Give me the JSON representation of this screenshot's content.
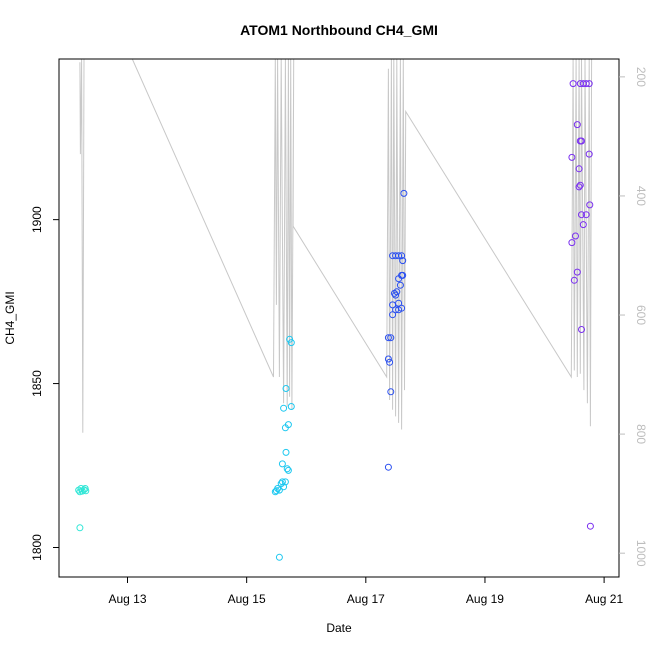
{
  "chart_data": {
    "type": "scatter",
    "title": "ATOM1 Northbound CH4_GMI",
    "xlabel": "Date",
    "ylabel": "CH4_GMI",
    "x_ticks": [
      {
        "day": 13,
        "label": "Aug 13"
      },
      {
        "day": 15,
        "label": "Aug 15"
      },
      {
        "day": 17,
        "label": "Aug 17"
      },
      {
        "day": 19,
        "label": "Aug 19"
      },
      {
        "day": 21,
        "label": "Aug 21"
      }
    ],
    "xlim": [
      11.85,
      21.25
    ],
    "ylim": [
      1791,
      1949
    ],
    "y_ticks": [
      1800,
      1850,
      1900
    ],
    "y2_lim": [
      1040,
      170
    ],
    "y2_ticks": [
      200,
      400,
      600,
      800,
      1000
    ],
    "grid": false,
    "colors": {
      "points_early": "#2ee6d6",
      "points_mid": "#1ec8f0",
      "points_late_mid": "#2a4ff0",
      "points_late": "#7a2ff0",
      "pressure_line": "#c8c8c8"
    },
    "series": [
      {
        "color": "#2ee6d6",
        "points": [
          [
            12.18,
            1817.5
          ],
          [
            12.2,
            1817
          ],
          [
            12.22,
            1818
          ],
          [
            12.24,
            1817.2
          ],
          [
            12.27,
            1817.6
          ],
          [
            12.29,
            1818
          ],
          [
            12.3,
            1817.3
          ],
          [
            12.2,
            1806
          ]
        ]
      },
      {
        "color": "#1ec8f0",
        "points": [
          [
            15.48,
            1817
          ],
          [
            15.5,
            1817.3
          ],
          [
            15.52,
            1818
          ],
          [
            15.55,
            1817.5
          ],
          [
            15.58,
            1819.5
          ],
          [
            15.6,
            1820
          ],
          [
            15.62,
            1818.5
          ],
          [
            15.65,
            1820
          ],
          [
            15.68,
            1824
          ],
          [
            15.7,
            1823.5
          ],
          [
            15.6,
            1825.5
          ],
          [
            15.66,
            1829
          ],
          [
            15.65,
            1836.5
          ],
          [
            15.7,
            1837.5
          ],
          [
            15.62,
            1842.5
          ],
          [
            15.75,
            1843
          ],
          [
            15.66,
            1848.5
          ],
          [
            15.72,
            1863.5
          ],
          [
            15.75,
            1862.5
          ],
          [
            15.55,
            1797
          ]
        ]
      },
      {
        "color": "#2a4ff0",
        "points": [
          [
            17.38,
            1824.5
          ],
          [
            17.42,
            1847.5
          ],
          [
            17.38,
            1857.5
          ],
          [
            17.4,
            1856.5
          ],
          [
            17.38,
            1864
          ],
          [
            17.42,
            1864
          ],
          [
            17.45,
            1871
          ],
          [
            17.5,
            1872.5
          ],
          [
            17.55,
            1872.5
          ],
          [
            17.6,
            1873
          ],
          [
            17.45,
            1874
          ],
          [
            17.55,
            1874.5
          ],
          [
            17.5,
            1877
          ],
          [
            17.48,
            1877.5
          ],
          [
            17.52,
            1878
          ],
          [
            17.58,
            1880
          ],
          [
            17.55,
            1882
          ],
          [
            17.6,
            1883
          ],
          [
            17.62,
            1883
          ],
          [
            17.62,
            1887.5
          ],
          [
            17.45,
            1889
          ],
          [
            17.5,
            1889
          ],
          [
            17.55,
            1889
          ],
          [
            17.6,
            1889
          ],
          [
            17.64,
            1908
          ]
        ]
      },
      {
        "color": "#7a2ff0",
        "points": [
          [
            20.48,
            1941.5
          ],
          [
            20.46,
            1919
          ],
          [
            20.5,
            1881.5
          ],
          [
            20.46,
            1893
          ],
          [
            20.52,
            1895
          ],
          [
            20.55,
            1884
          ],
          [
            20.58,
            1910
          ],
          [
            20.6,
            1910.5
          ],
          [
            20.55,
            1929
          ],
          [
            20.58,
            1915.5
          ],
          [
            20.6,
            1924
          ],
          [
            20.62,
            1924
          ],
          [
            20.62,
            1901.5
          ],
          [
            20.65,
            1898.5
          ],
          [
            20.7,
            1901.5
          ],
          [
            20.75,
            1920
          ],
          [
            20.76,
            1904.5
          ],
          [
            20.6,
            1941.5
          ],
          [
            20.65,
            1941.5
          ],
          [
            20.7,
            1941.5
          ],
          [
            20.75,
            1941.5
          ],
          [
            20.62,
            1866.5
          ],
          [
            20.77,
            1806.5
          ]
        ]
      }
    ],
    "pressure_line": [
      [
        12.2,
        1948
      ],
      [
        12.21,
        1920
      ],
      [
        12.23,
        1949
      ],
      [
        12.25,
        1835
      ],
      [
        12.27,
        1949
      ],
      [
        12.32,
        1949
      ],
      [
        12.36,
        1949
      ],
      [
        13.08,
        1949
      ],
      [
        15.45,
        1852
      ],
      [
        15.48,
        1949
      ],
      [
        15.5,
        1874
      ],
      [
        15.52,
        1949
      ],
      [
        15.55,
        1852
      ],
      [
        15.58,
        1949
      ],
      [
        15.62,
        1844
      ],
      [
        15.65,
        1949
      ],
      [
        15.68,
        1843
      ],
      [
        15.7,
        1949
      ],
      [
        15.72,
        1846
      ],
      [
        15.74,
        1949
      ],
      [
        15.76,
        1842
      ],
      [
        15.79,
        1949
      ],
      [
        15.78,
        1898
      ],
      [
        17.35,
        1852
      ],
      [
        17.38,
        1946
      ],
      [
        17.4,
        1845
      ],
      [
        17.43,
        1949
      ],
      [
        17.45,
        1842
      ],
      [
        17.47,
        1949
      ],
      [
        17.5,
        1840
      ],
      [
        17.52,
        1949
      ],
      [
        17.55,
        1838
      ],
      [
        17.58,
        1949
      ],
      [
        17.6,
        1836
      ],
      [
        17.63,
        1949
      ],
      [
        17.65,
        1848
      ],
      [
        17.67,
        1933
      ],
      [
        20.45,
        1852
      ],
      [
        20.48,
        1949
      ],
      [
        20.5,
        1854
      ],
      [
        20.53,
        1949
      ],
      [
        20.55,
        1852
      ],
      [
        20.58,
        1949
      ],
      [
        20.6,
        1853
      ],
      [
        20.62,
        1949
      ],
      [
        20.66,
        1848
      ],
      [
        20.68,
        1949
      ],
      [
        20.72,
        1844
      ],
      [
        20.75,
        1949
      ],
      [
        20.77,
        1837
      ],
      [
        20.79,
        1949
      ]
    ]
  }
}
